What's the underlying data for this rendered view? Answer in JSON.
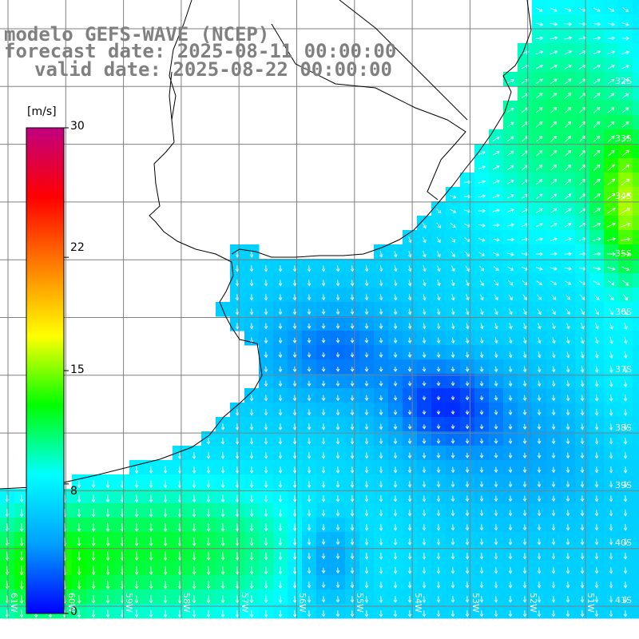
{
  "title": {
    "line1": "modelo GEFS-WAVE (NCEP)",
    "line2": "forecast date: 2025-08-11 00:00:00",
    "line3": "valid date: 2025-08-22 00:00:00"
  },
  "colorbar": {
    "unit": "[m/s]",
    "ticks": [
      {
        "value": 30,
        "label": "30"
      },
      {
        "value": 22,
        "label": "22"
      },
      {
        "value": 15,
        "label": "15"
      },
      {
        "value": 8,
        "label": "8"
      },
      {
        "value": 0,
        "label": "0"
      }
    ],
    "colors": [
      "#0000ff",
      "#00a0ff",
      "#00ffff",
      "#00ff00",
      "#ffff00",
      "#ff8000",
      "#ff0000",
      "#c00080"
    ]
  },
  "latitude_labels": [
    "32S",
    "33S",
    "34S",
    "35S",
    "36S",
    "37S",
    "38S",
    "39S",
    "40S",
    "41S"
  ],
  "longitude_labels": [
    "61W",
    "60W",
    "59W",
    "58W",
    "57W",
    "56W",
    "55W",
    "54W",
    "53W",
    "52W",
    "51W"
  ],
  "colors": {
    "land": "#ffffff",
    "coastline": "#000000",
    "grid": "#7f7f7f",
    "title": "#808080",
    "arrows": "#ffffff"
  }
}
